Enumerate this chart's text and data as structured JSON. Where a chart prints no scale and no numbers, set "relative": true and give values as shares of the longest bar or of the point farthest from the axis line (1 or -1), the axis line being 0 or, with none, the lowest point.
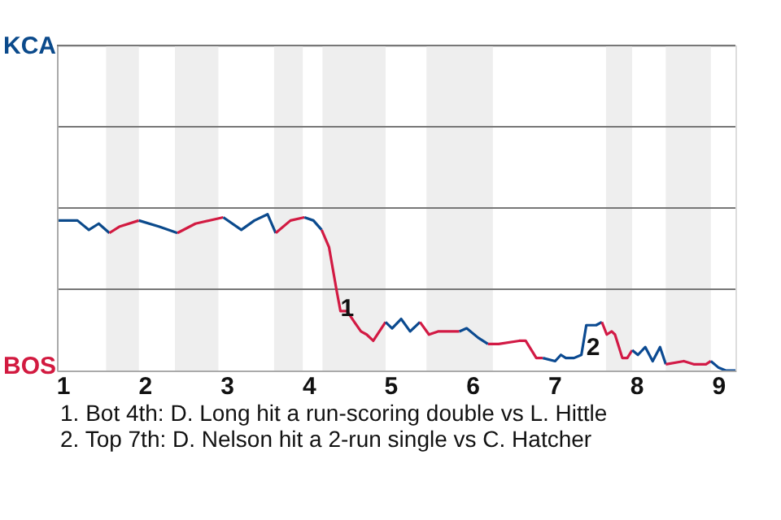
{
  "chart_data": {
    "type": "line",
    "relative": true,
    "xlim": [
      0.93,
      9.21
    ],
    "xticks": [
      1,
      2,
      3,
      4,
      5,
      6,
      7,
      8,
      9
    ],
    "marker": "none",
    "line_style": "solid",
    "ref_lines": [
      {
        "axis": "y",
        "value": 0.52,
        "color": "#777777"
      },
      {
        "axis": "y",
        "value": 1.04,
        "color": "#777777"
      },
      {
        "axis": "y",
        "value": 1.56,
        "color": "#777777"
      },
      {
        "axis": "y",
        "value": 2.08,
        "color": "#777777"
      }
    ],
    "bands": [
      {
        "axis": "x",
        "from": 1.53,
        "to": 1.93,
        "color": "#eeeeee"
      },
      {
        "axis": "x",
        "from": 2.37,
        "to": 2.9,
        "color": "#eeeeee"
      },
      {
        "axis": "x",
        "from": 3.58,
        "to": 3.93,
        "color": "#eeeeee"
      },
      {
        "axis": "x",
        "from": 4.17,
        "to": 4.94,
        "color": "#eeeeee"
      },
      {
        "axis": "x",
        "from": 5.44,
        "to": 6.25,
        "color": "#eeeeee"
      },
      {
        "axis": "x",
        "from": 7.63,
        "to": 7.95,
        "color": "#eeeeee"
      },
      {
        "axis": "x",
        "from": 8.36,
        "to": 8.91,
        "color": "#eeeeee"
      }
    ],
    "series": [
      {
        "color": "#0b4a8b",
        "x": [
          0.93,
          1.18,
          1.32,
          1.44,
          1.57
        ],
        "values": [
          0.96,
          0.96,
          0.9,
          0.94,
          0.88
        ]
      },
      {
        "color": "#d21a40",
        "x": [
          1.57,
          1.69,
          1.93
        ],
        "values": [
          0.88,
          0.92,
          0.96
        ]
      },
      {
        "color": "#0b4a8c",
        "x": [
          1.93,
          2.18,
          2.4
        ],
        "values": [
          0.96,
          0.92,
          0.88
        ]
      },
      {
        "color": "#d21a41",
        "x": [
          2.4,
          2.62,
          2.96
        ],
        "values": [
          0.88,
          0.94,
          0.98
        ]
      },
      {
        "color": "#0b4a8d",
        "x": [
          2.96,
          3.18,
          3.34,
          3.5,
          3.6
        ],
        "values": [
          0.98,
          0.9,
          0.96,
          1,
          0.88
        ]
      },
      {
        "color": "#d21a42",
        "x": [
          3.6,
          3.78,
          3.95
        ],
        "values": [
          0.88,
          0.96,
          0.98
        ]
      },
      {
        "color": "#0b4a8e",
        "x": [
          3.95,
          4.06,
          4.16
        ],
        "values": [
          0.98,
          0.96,
          0.9
        ]
      },
      {
        "color": "#d21a43",
        "x": [
          4.16,
          4.25,
          4.34,
          4.39,
          4.47,
          4.56,
          4.64,
          4.71,
          4.79,
          4.94
        ],
        "values": [
          0.9,
          0.79,
          0.52,
          0.38,
          0.38,
          0.31,
          0.25,
          0.23,
          0.19,
          0.31
        ]
      },
      {
        "color": "#0b4a8f",
        "x": [
          4.94,
          5.02,
          5.13,
          5.24,
          5.36
        ],
        "values": [
          0.31,
          0.27,
          0.33,
          0.25,
          0.31
        ]
      },
      {
        "color": "#d21a44",
        "x": [
          5.36,
          5.47,
          5.58,
          5.69,
          5.84
        ],
        "values": [
          0.31,
          0.23,
          0.25,
          0.25,
          0.25
        ]
      },
      {
        "color": "#0b4a90",
        "x": [
          5.84,
          5.93,
          6.07,
          6.19
        ],
        "values": [
          0.25,
          0.27,
          0.21,
          0.17
        ]
      },
      {
        "color": "#d21a45",
        "x": [
          6.19,
          6.32,
          6.57,
          6.65,
          6.78,
          6.86
        ],
        "values": [
          0.17,
          0.17,
          0.19,
          0.19,
          0.08,
          0.08
        ]
      },
      {
        "color": "#0b4a91",
        "x": [
          6.86,
          7.01,
          7.08,
          7.14,
          7.24,
          7.33,
          7.39,
          7.51,
          7.58
        ],
        "values": [
          0.08,
          0.06,
          0.1,
          0.08,
          0.08,
          0.1,
          0.29,
          0.29,
          0.31
        ]
      },
      {
        "color": "#d21a46",
        "x": [
          7.58,
          7.64,
          7.7,
          7.74,
          7.83,
          7.89,
          7.95
        ],
        "values": [
          0.31,
          0.23,
          0.25,
          0.23,
          0.08,
          0.08,
          0.13
        ]
      },
      {
        "color": "#0b4a92",
        "x": [
          7.95,
          8.02,
          8.11,
          8.2,
          8.29,
          8.36
        ],
        "values": [
          0.13,
          0.1,
          0.15,
          0.06,
          0.15,
          0.04
        ]
      },
      {
        "color": "#d21a47",
        "x": [
          8.36,
          8.58,
          8.7,
          8.85,
          8.91
        ],
        "values": [
          0.04,
          0.06,
          0.04,
          0.04,
          0.06
        ]
      },
      {
        "color": "#0b4a93",
        "x": [
          8.91,
          9,
          9.09,
          9.21
        ],
        "values": [
          0.06,
          0.02,
          0,
          0
        ]
      }
    ],
    "annotations": [
      "KCA",
      "BOS",
      {
        "text": "1",
        "x": 4.39,
        "y": 0.38
      },
      {
        "text": "2",
        "x": 7.39,
        "y": 0.13
      },
      "1. Bot 4th: D. Long hit a run-scoring double vs L. Hittle",
      "2. Top 7th: D. Nelson hit a 2-run single vs C. Hatcher"
    ]
  }
}
